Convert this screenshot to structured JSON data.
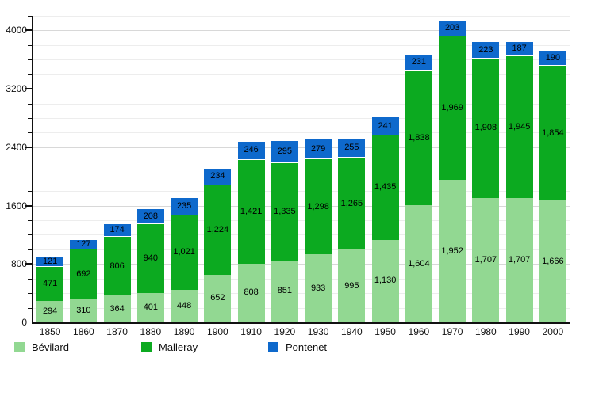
{
  "chart_data": {
    "type": "bar",
    "stacked": true,
    "title": "",
    "xlabel": "",
    "ylabel": "",
    "categories": [
      "1850",
      "1860",
      "1870",
      "1880",
      "1890",
      "1900",
      "1910",
      "1920",
      "1930",
      "1940",
      "1950",
      "1960",
      "1970",
      "1980",
      "1990",
      "2000"
    ],
    "series": [
      {
        "key": "bevilard",
        "name": "Bévilard",
        "color": "#92d892",
        "values": [
          294,
          310,
          364,
          401,
          448,
          652,
          808,
          851,
          933,
          995,
          1130,
          1604,
          1952,
          1707,
          1707,
          1666
        ]
      },
      {
        "key": "malleray",
        "name": "Malleray",
        "color": "#0caa20",
        "values": [
          471,
          692,
          806,
          940,
          1021,
          1224,
          1421,
          1335,
          1298,
          1265,
          1435,
          1838,
          1969,
          1908,
          1945,
          1854
        ]
      },
      {
        "key": "pontenet",
        "name": "Pontenet",
        "color": "#0e69cc",
        "values": [
          121,
          127,
          174,
          208,
          235,
          234,
          246,
          295,
          279,
          255,
          241,
          231,
          203,
          223,
          187,
          190
        ]
      }
    ],
    "ylim": [
      0,
      4200
    ],
    "y_major_step": 800,
    "y_minor_step": 200,
    "y_tick_values": [
      0,
      800,
      1600,
      2400,
      3200,
      4000
    ],
    "y_tick_labels": [
      "0",
      "800",
      "1600",
      "2400",
      "3200",
      "4000"
    ],
    "grid": true,
    "legend_position": "bottom",
    "value_labels_shown": true,
    "colors": {
      "axis": "#111111",
      "grid_major": "#d8d8d8",
      "grid_minor": "#ededed",
      "segment_separator": "#ffffff",
      "text": "#000000"
    }
  }
}
